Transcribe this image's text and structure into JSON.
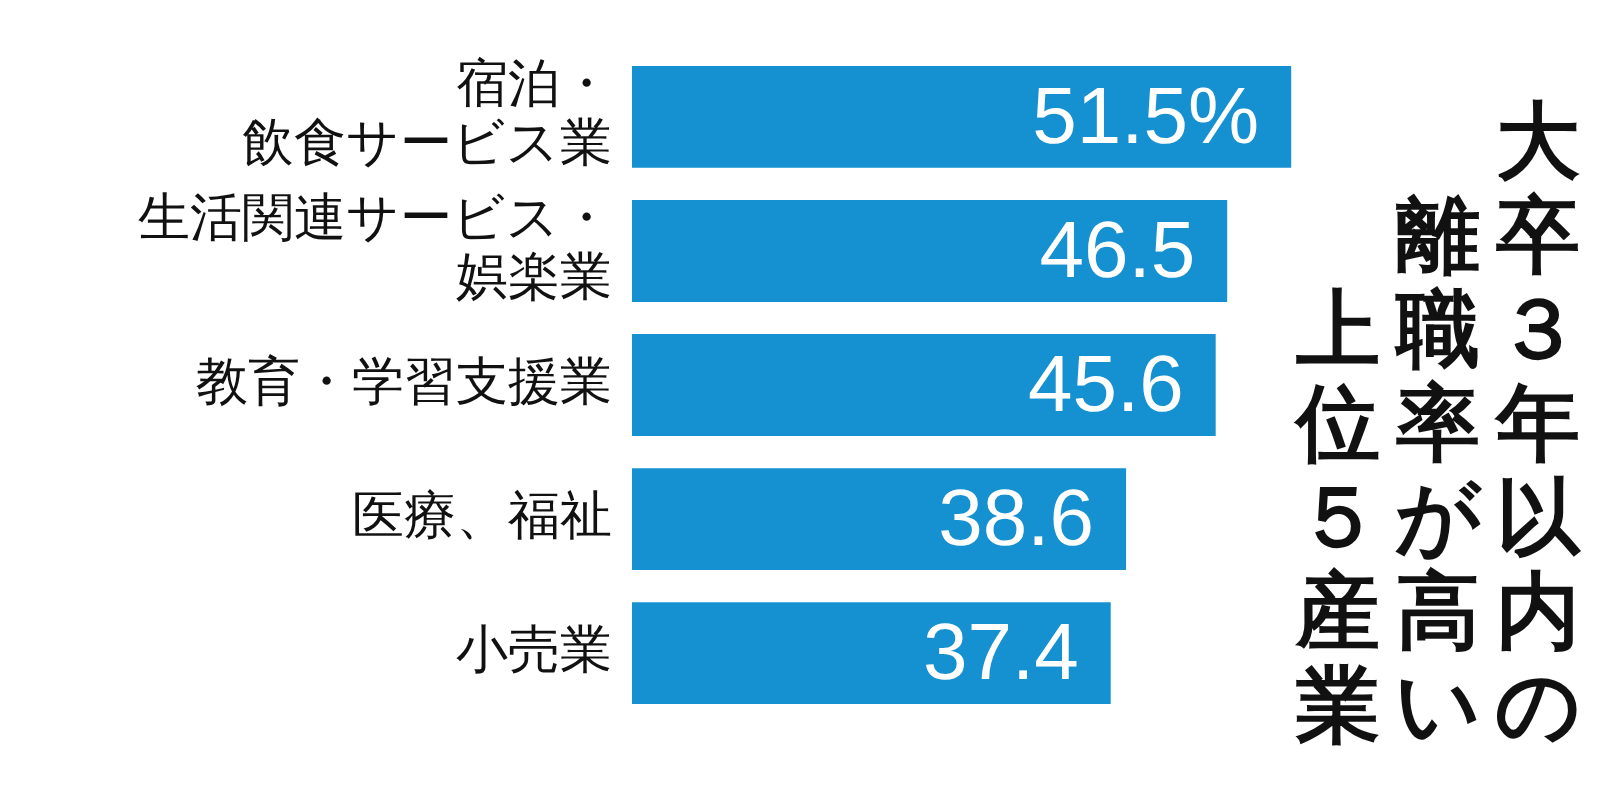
{
  "chart_data": {
    "type": "bar",
    "orientation": "horizontal",
    "title": "大卒３年以内の離職率が高い上位５産業",
    "categories": [
      "宿泊・飲食サービス業",
      "生活関連サービス・娯楽業",
      "教育・学習支援業",
      "医療、福祉",
      "小売業"
    ],
    "values": [
      51.5,
      46.5,
      45.6,
      38.6,
      37.4
    ],
    "value_labels": [
      "51.5%",
      "46.5",
      "45.6",
      "38.6",
      "37.4"
    ],
    "color": "#1590d0",
    "tick_labels": "y"
  }
}
